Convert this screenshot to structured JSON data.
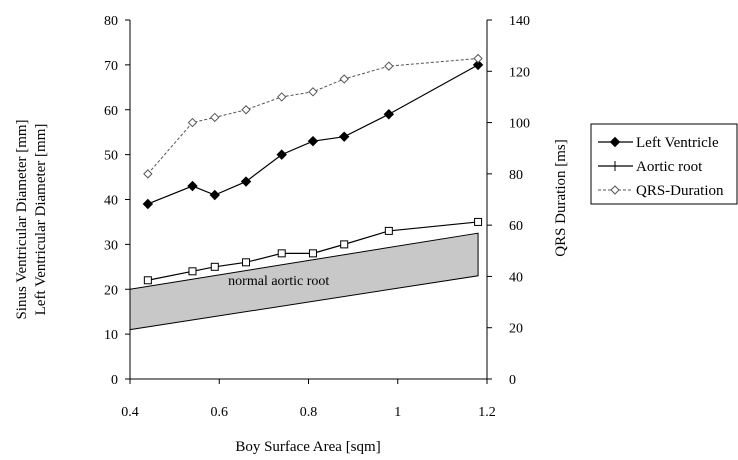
{
  "chart_data": {
    "type": "line",
    "xlabel": "Boy Surface Area [sqm]",
    "ylabel_left_lines": [
      "Sinus Ventricular Diameter [mm]",
      "Left Ventricular Diameter [mm]"
    ],
    "ylabel_right": "QRS Duration [ms]",
    "xlim": [
      0.4,
      1.2
    ],
    "ylim_left": [
      0,
      80
    ],
    "ylim_right": [
      0,
      140
    ],
    "x_ticks": [
      "0.4",
      "0.6",
      "0.8",
      "1",
      "1.2"
    ],
    "x_tick_values": [
      0.4,
      0.6,
      0.8,
      1.0,
      1.2
    ],
    "y_left_ticks": [
      "0",
      "10",
      "20",
      "30",
      "40",
      "50",
      "60",
      "70",
      "80"
    ],
    "y_left_tick_values": [
      0,
      10,
      20,
      30,
      40,
      50,
      60,
      70,
      80
    ],
    "y_right_ticks": [
      "0",
      "20",
      "40",
      "60",
      "80",
      "100",
      "120",
      "140"
    ],
    "y_right_tick_values": [
      0,
      20,
      40,
      60,
      80,
      100,
      120,
      140
    ],
    "grid": false,
    "legend_position": "right",
    "series": [
      {
        "name": "Left Ventricle",
        "axis": "left",
        "marker": "diamond-filled",
        "line": "solid",
        "color": "#000000",
        "x": [
          0.44,
          0.54,
          0.59,
          0.66,
          0.74,
          0.81,
          0.88,
          0.98,
          1.18
        ],
        "y": [
          39,
          43,
          41,
          44,
          50,
          53,
          54,
          59,
          70
        ]
      },
      {
        "name": "Aortic root",
        "axis": "left",
        "marker": "square-open",
        "line": "solid",
        "color": "#000000",
        "x": [
          0.44,
          0.54,
          0.59,
          0.66,
          0.74,
          0.81,
          0.88,
          0.98,
          1.18
        ],
        "y": [
          22,
          24,
          25,
          26,
          28,
          28,
          30,
          33,
          35
        ]
      },
      {
        "name": "QRS-Duration",
        "axis": "right",
        "marker": "diamond-open",
        "line": "dashed",
        "color": "#555555",
        "x": [
          0.44,
          0.54,
          0.59,
          0.66,
          0.74,
          0.81,
          0.88,
          0.98,
          1.18
        ],
        "y": [
          80,
          100,
          102,
          105,
          110,
          112,
          117,
          122,
          125
        ]
      }
    ],
    "band": {
      "label": "normal aortic root",
      "axis": "left",
      "x": [
        0.4,
        1.18
      ],
      "upper": [
        20,
        32.5
      ],
      "lower": [
        11,
        23
      ],
      "fill": "#c8c8c8"
    }
  }
}
